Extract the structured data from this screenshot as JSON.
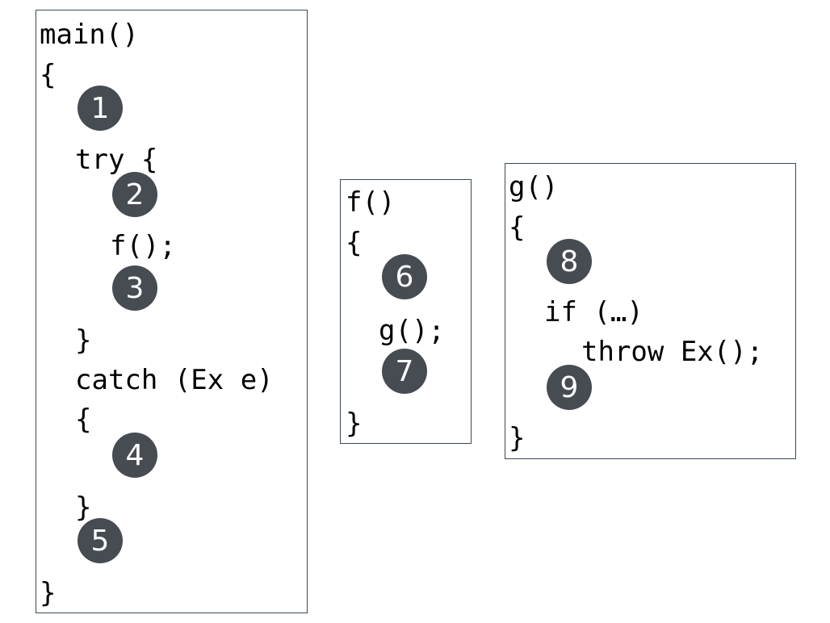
{
  "colors": {
    "box_border": "#3a4a5c",
    "marker_fill": "#474b52",
    "marker_text": "#ffffff",
    "code_text": "#000000"
  },
  "main_fn": {
    "header": "main()",
    "open_brace": "{",
    "try_line": "try {",
    "call_f": "f();",
    "try_close": "}",
    "catch_line": "catch (Ex e)",
    "catch_open": "{",
    "catch_close": "}",
    "close_brace": "}",
    "markers": [
      "1",
      "2",
      "3",
      "4",
      "5"
    ]
  },
  "f_fn": {
    "header": "f()",
    "open_brace": "{",
    "call_g": "g();",
    "close_brace": "}",
    "markers": [
      "6",
      "7"
    ]
  },
  "g_fn": {
    "header": "g()",
    "open_brace": "{",
    "if_line": "if (…)",
    "throw_line": "throw Ex();",
    "close_brace": "}",
    "markers": [
      "8",
      "9"
    ]
  }
}
